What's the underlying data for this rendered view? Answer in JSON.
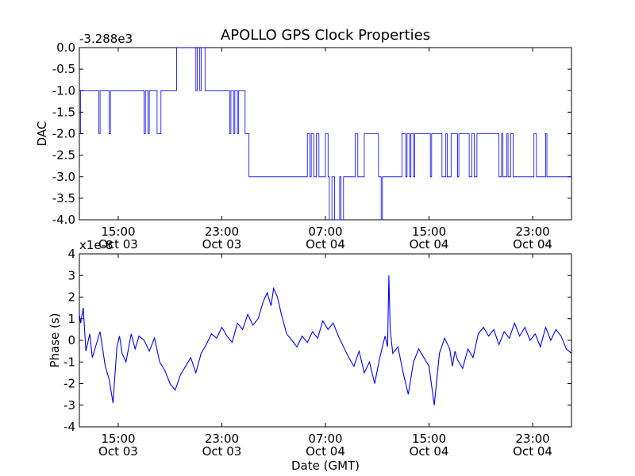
{
  "chart_data": [
    {
      "type": "line",
      "title": "APOLLO GPS Clock Properties",
      "xlabel": "",
      "ylabel": "DAC",
      "offset_text": "-3.288e3",
      "ylim": [
        -4.0,
        0.0
      ],
      "yticks": [
        "0.0",
        "-0.5",
        "-1.0",
        "-1.5",
        "-2.0",
        "-2.5",
        "-3.0",
        "-3.5",
        "-4.0"
      ],
      "xticks": [
        {
          "time": "15:00",
          "date": "Oct 03"
        },
        {
          "time": "23:00",
          "date": "Oct 03"
        },
        {
          "time": "07:00",
          "date": "Oct 04"
        },
        {
          "time": "15:00",
          "date": "Oct 04"
        },
        {
          "time": "23:00",
          "date": "Oct 04"
        }
      ],
      "grid": false,
      "line_color": "#0000ff",
      "series": [
        {
          "x_hours": [
            12.0,
            12.1,
            12.3,
            13.5,
            13.6,
            13.7,
            14.3,
            14.4,
            16.9,
            17.0,
            17.1,
            17.3,
            17.4,
            17.5,
            18.0,
            18.1,
            18.3,
            18.4,
            19.4,
            19.5,
            19.6,
            20.9,
            21.0,
            21.1,
            21.3,
            21.4,
            21.6,
            21.7,
            21.9,
            22.1,
            23.5,
            23.6,
            23.7,
            23.9,
            24.0,
            24.2,
            24.3,
            24.5,
            24.8,
            24.9,
            25.1,
            25.2,
            29.5,
            29.6,
            29.8,
            29.9,
            30.1,
            30.3,
            30.5,
            30.8,
            31.0,
            31.2,
            31.3,
            31.5,
            31.7,
            32.0,
            32.1,
            32.2,
            32.4,
            32.6,
            32.8,
            33.2,
            33.3,
            33.5,
            33.6,
            34.0,
            35.0,
            35.1,
            35.3,
            35.4,
            36.8,
            36.9,
            37.2,
            37.3,
            37.5,
            37.6,
            37.8,
            37.9,
            38.0,
            39.0,
            39.1,
            39.2,
            39.5,
            40.0,
            40.3,
            40.4,
            40.7,
            40.8,
            41.2,
            41.3,
            42.0,
            42.1,
            42.3,
            42.5,
            42.7,
            43.0,
            44.3,
            44.4,
            44.6,
            44.7,
            45.0,
            45.1,
            45.3,
            45.5,
            47.0,
            47.1,
            47.3,
            47.5,
            48.0,
            48.1,
            48.3,
            48.5,
            48.7,
            49.0,
            49.3,
            50.0
          ],
          "values": [
            -2.0,
            -1.0,
            -1.0,
            -2.0,
            -1.0,
            -1.0,
            -2.0,
            -1.0,
            -1.0,
            -2.0,
            -1.0,
            -2.0,
            -1.0,
            -1.0,
            -2.0,
            -2.0,
            -1.0,
            -1.0,
            -1.0,
            0.0,
            0.0,
            0.0,
            -1.0,
            0.0,
            -1.0,
            0.0,
            0.0,
            -1.0,
            -1.0,
            -1.0,
            -1.0,
            -2.0,
            -1.0,
            -2.0,
            -1.0,
            -2.0,
            -1.0,
            -1.0,
            -2.0,
            -2.0,
            -3.0,
            -3.0,
            -3.0,
            -2.0,
            -3.0,
            -2.0,
            -3.0,
            -2.0,
            -3.0,
            -3.0,
            -2.0,
            -3.0,
            -4.0,
            -3.0,
            -4.0,
            -4.0,
            -3.0,
            -4.0,
            -3.0,
            -3.0,
            -3.0,
            -3.0,
            -2.0,
            -3.0,
            -3.0,
            -2.0,
            -2.0,
            -3.0,
            -4.0,
            -3.0,
            -3.0,
            -2.0,
            -3.0,
            -2.0,
            -3.0,
            -2.0,
            -3.0,
            -2.0,
            -2.0,
            -2.0,
            -3.0,
            -2.0,
            -2.0,
            -3.0,
            -2.0,
            -3.0,
            -2.0,
            -2.0,
            -3.0,
            -2.0,
            -2.0,
            -3.0,
            -2.0,
            -3.0,
            -2.0,
            -2.0,
            -2.0,
            -3.0,
            -2.0,
            -3.0,
            -2.0,
            -3.0,
            -2.0,
            -3.0,
            -3.0,
            -2.0,
            -3.0,
            -3.0,
            -2.0,
            -3.0,
            -3.0,
            -3.0,
            -3.0,
            -3.0,
            -3.0,
            -3.0
          ]
        }
      ]
    },
    {
      "type": "line",
      "title": "",
      "xlabel": "Date (GMT)",
      "ylabel": "Phase (s)",
      "offset_text": "x1e-8",
      "ylim": [
        -4,
        4
      ],
      "yticks": [
        "4",
        "3",
        "2",
        "1",
        "0",
        "-1",
        "-2",
        "-3",
        "-4"
      ],
      "xticks": [
        {
          "time": "15:00",
          "date": "Oct 03"
        },
        {
          "time": "23:00",
          "date": "Oct 03"
        },
        {
          "time": "07:00",
          "date": "Oct 04"
        },
        {
          "time": "15:00",
          "date": "Oct 04"
        },
        {
          "time": "23:00",
          "date": "Oct 04"
        }
      ],
      "grid": false,
      "line_color": "#0000ff",
      "series": [
        {
          "x_hours": [
            12.0,
            12.1,
            12.3,
            12.5,
            12.8,
            13.0,
            13.3,
            13.6,
            14.0,
            14.3,
            14.6,
            14.9,
            15.1,
            15.3,
            15.6,
            16.0,
            16.3,
            16.6,
            17.0,
            17.4,
            17.8,
            18.2,
            18.6,
            19.0,
            19.4,
            19.8,
            20.2,
            20.6,
            21.0,
            21.4,
            21.8,
            22.2,
            22.6,
            23.0,
            23.4,
            23.8,
            24.2,
            24.6,
            25.0,
            25.4,
            25.8,
            26.2,
            26.5,
            26.8,
            27.0,
            27.3,
            27.6,
            28.0,
            28.4,
            28.8,
            29.2,
            29.6,
            30.0,
            30.4,
            30.8,
            31.2,
            31.6,
            32.0,
            32.4,
            32.8,
            33.2,
            33.6,
            34.0,
            34.4,
            34.8,
            35.2,
            35.6,
            35.8,
            35.9,
            36.0,
            36.2,
            36.6,
            37.0,
            37.4,
            37.8,
            38.2,
            38.6,
            39.0,
            39.4,
            39.8,
            40.2,
            40.6,
            40.8,
            41.0,
            41.2,
            41.6,
            42.0,
            42.4,
            42.8,
            43.2,
            43.6,
            44.0,
            44.4,
            44.8,
            45.2,
            45.6,
            46.0,
            46.4,
            46.8,
            47.2,
            47.6,
            48.0,
            48.4,
            48.8,
            49.2,
            49.6,
            50.0
          ],
          "values": [
            1.2,
            0.8,
            1.5,
            -0.5,
            0.3,
            -0.8,
            -0.2,
            0.4,
            -1.2,
            -1.8,
            -2.9,
            -0.3,
            0.2,
            -0.6,
            -1.0,
            0.3,
            -0.4,
            0.2,
            0.0,
            -0.5,
            0.1,
            -1.0,
            -1.4,
            -2.0,
            -2.3,
            -1.6,
            -1.2,
            -0.8,
            -1.5,
            -0.6,
            -0.2,
            0.3,
            0.1,
            0.6,
            0.2,
            -0.1,
            0.8,
            0.5,
            1.2,
            0.7,
            1.0,
            1.8,
            2.2,
            1.6,
            2.4,
            2.0,
            1.2,
            0.3,
            0.0,
            -0.3,
            0.2,
            -0.1,
            0.4,
            0.1,
            0.9,
            0.5,
            0.8,
            0.2,
            -0.3,
            -0.8,
            -1.2,
            -0.5,
            -1.5,
            -1.0,
            -2.0,
            -0.8,
            0.2,
            -0.3,
            3.0,
            0.5,
            -0.6,
            -0.3,
            -1.5,
            -2.5,
            -1.0,
            -0.4,
            -0.8,
            -1.2,
            -3.0,
            -0.6,
            0.1,
            -0.4,
            -1.2,
            -0.5,
            -0.9,
            -1.3,
            -0.4,
            -0.8,
            0.3,
            0.6,
            0.2,
            0.5,
            -0.2,
            0.4,
            0.1,
            0.8,
            0.2,
            0.6,
            0.0,
            0.3,
            -0.3,
            0.6,
            0.0,
            0.5,
            0.2,
            -0.4,
            -0.6
          ]
        }
      ]
    }
  ]
}
